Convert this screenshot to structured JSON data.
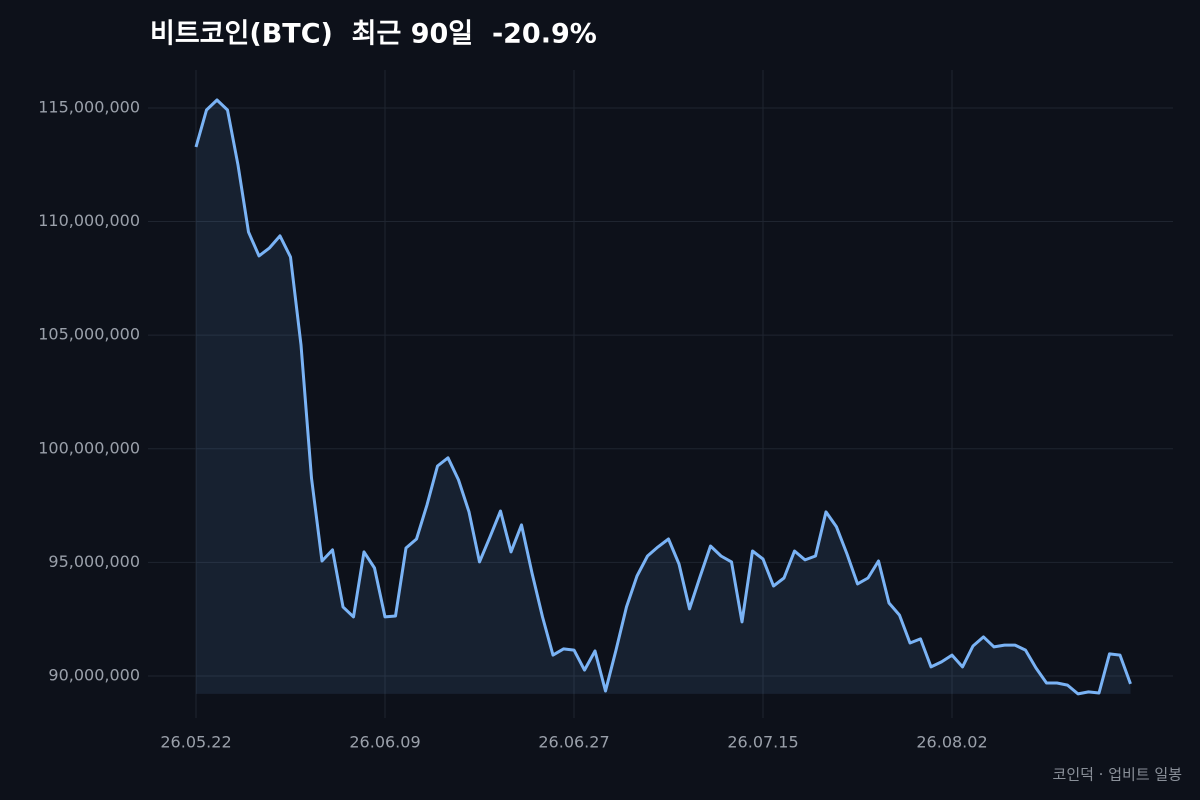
{
  "chart_data": {
    "type": "line",
    "title": "비트코인(BTC)  최근 90일  -20.9%",
    "source": "코인덕 · 업비트 일봉",
    "categories": [
      "26.05.22",
      null,
      null,
      null,
      null,
      null,
      null,
      null,
      null,
      null,
      null,
      null,
      null,
      null,
      null,
      null,
      null,
      null,
      "26.06.09",
      null,
      null,
      null,
      null,
      null,
      null,
      null,
      null,
      null,
      null,
      null,
      null,
      null,
      null,
      null,
      null,
      null,
      "26.06.27",
      null,
      null,
      null,
      null,
      null,
      null,
      null,
      null,
      null,
      null,
      null,
      null,
      null,
      null,
      null,
      null,
      null,
      "26.07.15",
      null,
      null,
      null,
      null,
      null,
      null,
      null,
      null,
      null,
      null,
      null,
      null,
      null,
      null,
      null,
      null,
      null,
      "26.08.02",
      null,
      null,
      null,
      null,
      null,
      null,
      null,
      null,
      null,
      null,
      null,
      null,
      null,
      null,
      null,
      null,
      null
    ],
    "series": [
      {
        "name": "BTC",
        "color": "#7ab3f5",
        "values": [
          113280000,
          114910000,
          115350000,
          114910000,
          112490000,
          109540000,
          108490000,
          108840000,
          109370000,
          108440000,
          104570000,
          98710000,
          95060000,
          95550000,
          93040000,
          92600000,
          95460000,
          94750000,
          92600000,
          92640000,
          95630000,
          96030000,
          97530000,
          99240000,
          99600000,
          98630000,
          97220000,
          95020000,
          96120000,
          97260000,
          95460000,
          96650000,
          94530000,
          92600000,
          90920000,
          91190000,
          91140000,
          90260000,
          91100000,
          89340000,
          91140000,
          93040000,
          94400000,
          95280000,
          95680000,
          96030000,
          94930000,
          92950000,
          94360000,
          95720000,
          95280000,
          95020000,
          92380000,
          95500000,
          95150000,
          93960000,
          94310000,
          95500000,
          95110000,
          95280000,
          97220000,
          96560000,
          95370000,
          94050000,
          94310000,
          95060000,
          93210000,
          92680000,
          91450000,
          91630000,
          90400000,
          90620000,
          90920000,
          90400000,
          91320000,
          91720000,
          91280000,
          91360000,
          91360000,
          91140000,
          90350000,
          89690000,
          89690000,
          89600000,
          89210000,
          89300000,
          89250000,
          90970000,
          90920000,
          89650000
        ]
      }
    ],
    "ylim": [
      88150000,
      116670000
    ],
    "yticks": [
      {
        "value": 90000000,
        "label": "90,000,000"
      },
      {
        "value": 95000000,
        "label": "95,000,000"
      },
      {
        "value": 100000000,
        "label": "100,000,000"
      },
      {
        "value": 105000000,
        "label": "105,000,000"
      },
      {
        "value": 110000000,
        "label": "110,000,000"
      },
      {
        "value": 115000000,
        "label": "115,000,000"
      }
    ],
    "grid": true
  }
}
